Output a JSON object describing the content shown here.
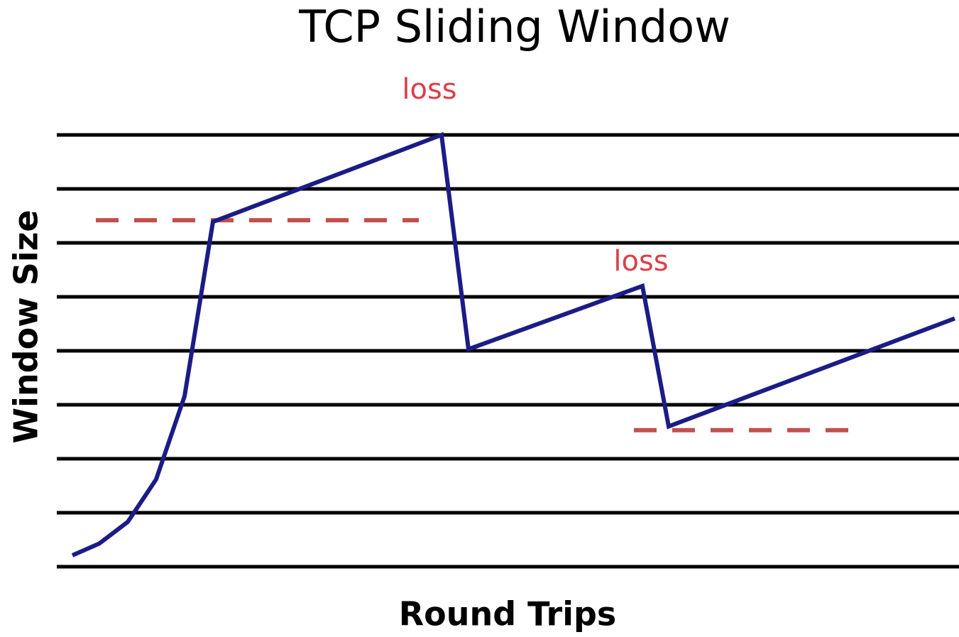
{
  "chart_data": {
    "type": "line",
    "title": "TCP Sliding Window",
    "x_label": "Round Trips",
    "y_label": "Window Size",
    "x": [
      0.22,
      0.6,
      1.0,
      1.4,
      1.8,
      2.2,
      5.42,
      5.8,
      8.25,
      8.62,
      12.65
    ],
    "series": [
      {
        "name": "Window Size",
        "color": "#1c1c86",
        "values": [
          0.21,
          0.43,
          0.83,
          1.62,
          3.16,
          6.39,
          8.0,
          4.03,
          5.2,
          2.6,
          4.6
        ]
      }
    ],
    "reference_lines": [
      {
        "y": 6.42,
        "x": [
          0.55,
          5.1
        ]
      },
      {
        "y": 2.53,
        "x": [
          8.13,
          11.35
        ]
      }
    ],
    "reference_color": "#c0504d",
    "annotations": [
      "loss",
      "loss"
    ],
    "annotation_color": "#d9404a",
    "xlim": [
      0,
      12.71
    ],
    "ylim": [
      0,
      8
    ],
    "yticks": [
      0,
      1,
      2,
      3,
      4,
      5,
      6,
      7,
      8
    ],
    "grid": true
  }
}
